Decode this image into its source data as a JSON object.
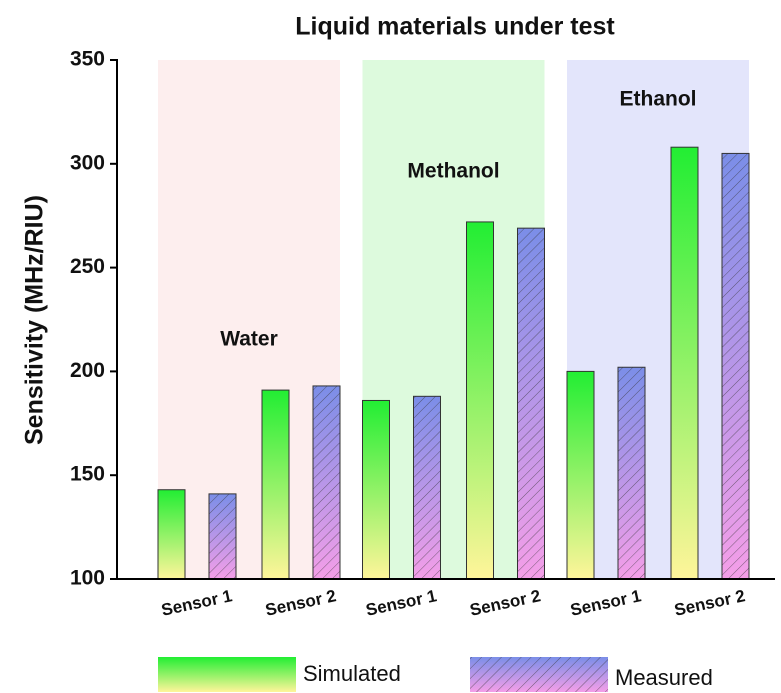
{
  "chart_data": {
    "type": "bar",
    "title": "Liquid materials under test",
    "y_label": "Sensitivity (MHz/RIU)",
    "categories": [
      "Sensor 1",
      "Sensor 2",
      "Sensor 1",
      "Sensor 2",
      "Sensor 1",
      "Sensor 2"
    ],
    "groups": [
      {
        "name": "Water",
        "color": "#fdeeee"
      },
      {
        "name": "Methanol",
        "color": "#ddfadd"
      },
      {
        "name": "Ethanol",
        "color": "#e3e5fb"
      }
    ],
    "series": [
      {
        "name": "Simulated",
        "colors": [
          "#22ee33",
          "#fff59a"
        ],
        "values": [
          143,
          191,
          186,
          272,
          200,
          308
        ]
      },
      {
        "name": "Measured",
        "colors": [
          "#7b8ee8",
          "#f49ee8"
        ],
        "hatch": true,
        "values": [
          141,
          193,
          188,
          269,
          202,
          305
        ]
      }
    ],
    "ylim": [
      100,
      350
    ],
    "yticks": [
      100,
      150,
      200,
      250,
      300,
      350
    ]
  }
}
